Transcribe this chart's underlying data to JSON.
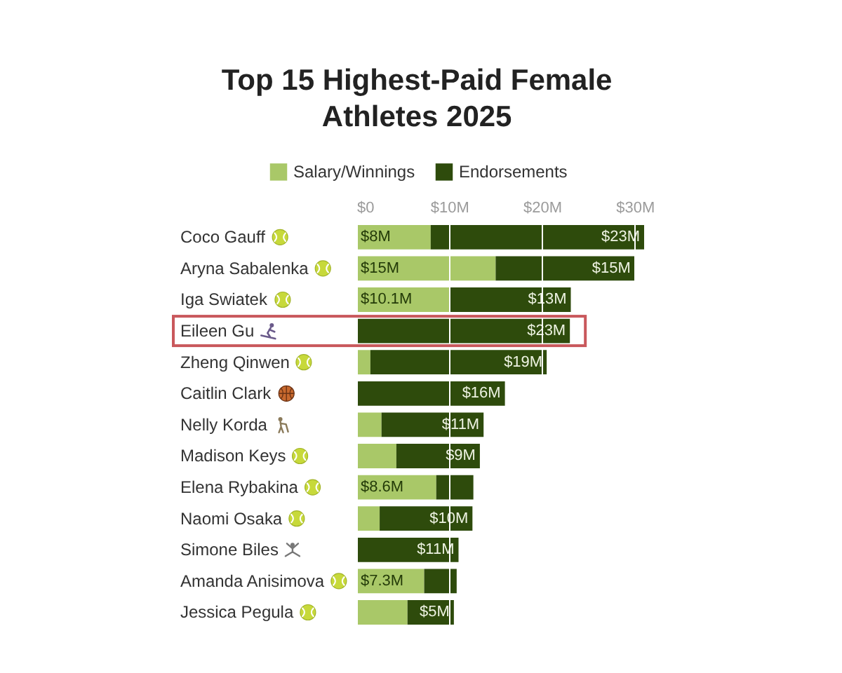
{
  "chart_data": {
    "type": "bar",
    "title": "Top 15 Highest-Paid Female Athletes 2025",
    "orientation": "horizontal",
    "stacked": true,
    "categories": [
      "Coco Gauff",
      "Aryna Sabalenka",
      "Iga Swiatek",
      "Eileen Gu",
      "Zheng Qinwen",
      "Caitlin Clark",
      "Nelly Korda",
      "Madison Keys",
      "Elena Rybakina",
      "Naomi Osaka",
      "Simone Biles",
      "Amanda Anisimova",
      "Jessica Pegula"
    ],
    "series": [
      {
        "name": "Salary/Winnings",
        "color": "#a9c868",
        "values": [
          8,
          15,
          10.1,
          null,
          1.5,
          null,
          2.7,
          4.3,
          8.6,
          2.5,
          null,
          7.3,
          5.5
        ],
        "value_labels": [
          "$8M",
          "$15M",
          "$10.1M",
          null,
          null,
          null,
          null,
          null,
          "$8.6M",
          null,
          null,
          "$7.3M",
          null
        ]
      },
      {
        "name": "Endorsements",
        "color": "#2e4b0c",
        "values": [
          23,
          15,
          13,
          23,
          19,
          16,
          11,
          9,
          4,
          10,
          11,
          3.5,
          5
        ],
        "value_labels": [
          "$23M",
          "$15M",
          "$13M",
          "$23M",
          "$19M",
          "$16M",
          "$11M",
          "$9M",
          null,
          "$10M",
          "$11M",
          null,
          "$5M"
        ]
      }
    ],
    "xlim": [
      0,
      31
    ],
    "xticks": [
      {
        "value": 0,
        "label": "$0"
      },
      {
        "value": 10,
        "label": "$10M"
      },
      {
        "value": 20,
        "label": "$20M"
      },
      {
        "value": 30,
        "label": "$30M"
      }
    ],
    "grid": "x",
    "legend": "top"
  }
}
